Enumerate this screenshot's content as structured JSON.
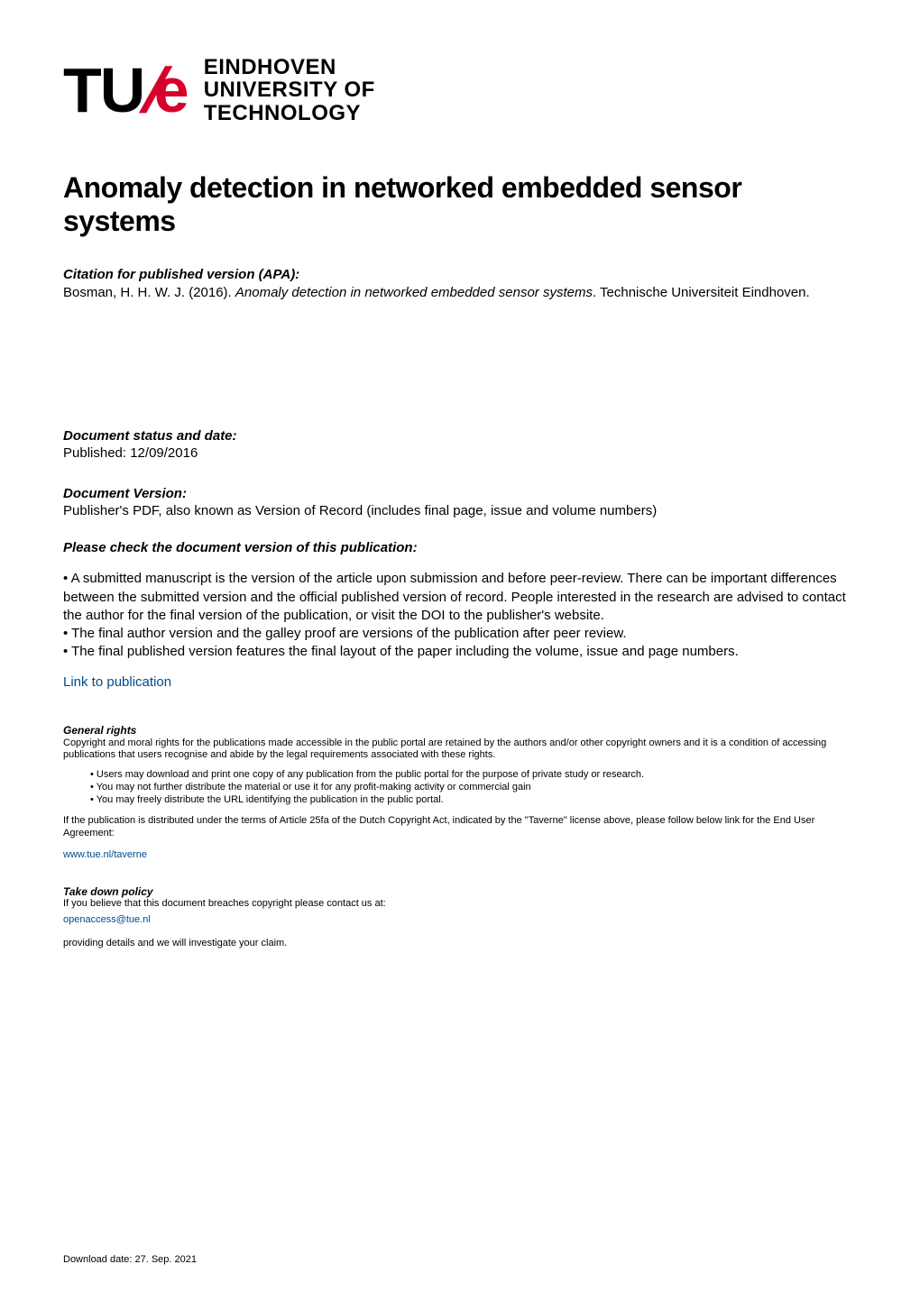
{
  "logo": {
    "tu": "TU",
    "slash": "/",
    "e": "e",
    "tagline1": "EINDHOVEN",
    "tagline2": "UNIVERSITY OF",
    "tagline3": "TECHNOLOGY"
  },
  "title": "Anomaly detection in networked embedded sensor systems",
  "citation": {
    "label": "Citation for published version (APA):",
    "author": "Bosman, H. H. W. J. (2016). ",
    "work_title": "Anomaly detection in networked embedded sensor systems",
    "publisher": ". Technische Universiteit Eindhoven."
  },
  "status": {
    "label": "Document status and date:",
    "text": "Published: 12/09/2016"
  },
  "version": {
    "label": "Document Version:",
    "text": "Publisher's PDF, also known as Version of Record (includes final page, issue and volume numbers)"
  },
  "check": {
    "label": "Please check the document version of this publication:"
  },
  "bullets_text": "• A submitted manuscript is the version of the article upon submission and before peer-review. There can be important differences between the submitted version and the official published version of record. People interested in the research are advised to contact the author for the final version of the publication, or visit the DOI to the publisher's website.\n• The final author version and the galley proof are versions of the publication after peer review.\n• The final published version features the final layout of the paper including the volume, issue and page numbers.",
  "link_to_pub": "Link to publication",
  "rights": {
    "label": "General rights",
    "intro": "Copyright and moral rights for the publications made accessible in the public portal are retained by the authors and/or other copyright owners and it is a condition of accessing publications that users recognise and abide by the legal requirements associated with these rights.",
    "bullets": "• Users may download and print one copy of any publication from the public portal for the purpose of private study or research.\n• You may not further distribute the material or use it for any profit-making activity or commercial gain\n• You may freely distribute the URL identifying the publication in the public portal.",
    "taverne": "If the publication is distributed under the terms of Article 25fa of the Dutch Copyright Act, indicated by the \"Taverne\" license above, please follow below link for the End User Agreement:",
    "taverne_link": "www.tue.nl/taverne"
  },
  "takedown": {
    "label": "Take down policy",
    "line1": "If you believe that this document breaches copyright please contact us at:",
    "email": "openaccess@tue.nl",
    "line2": "providing details and we will investigate your claim."
  },
  "footer": "Download date: 27. Sep. 2021"
}
